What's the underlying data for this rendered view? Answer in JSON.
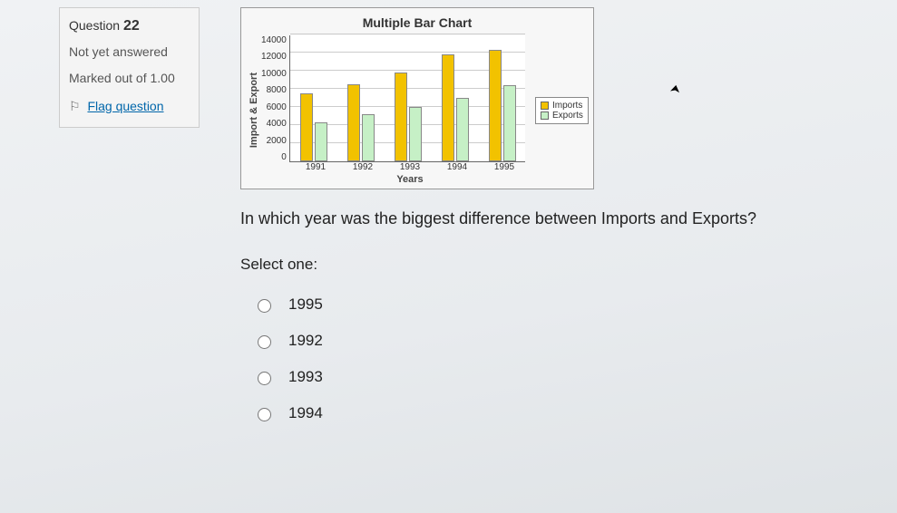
{
  "question_info": {
    "label": "Question",
    "number": "22",
    "status": "Not yet answered",
    "marked_label": "Marked out of",
    "marked_value": "1.00",
    "flag_text": "Flag question"
  },
  "chart": {
    "title": "Multiple Bar Chart",
    "ylabel": "Import & Export",
    "xlabel": "Years",
    "ymax": 14000,
    "ytick_step": 2000,
    "yticks": [
      "14000",
      "12000",
      "10000",
      "8000",
      "6000",
      "4000",
      "2000",
      "0"
    ],
    "categories": [
      "1991",
      "1992",
      "1993",
      "1994",
      "1995"
    ],
    "series": [
      {
        "name": "Imports",
        "color": "#f2c200",
        "values": [
          7500,
          8500,
          9800,
          11800,
          12300
        ]
      },
      {
        "name": "Exports",
        "color": "#c6f0c6",
        "values": [
          4300,
          5200,
          6000,
          7000,
          8400
        ]
      }
    ],
    "background_color": "#ffffff",
    "grid_color": "#cccccc",
    "axis_color": "#666666",
    "bar_border": "#888888"
  },
  "question_text": "In which year was the biggest difference between Imports and Exports?",
  "select_prompt": "Select one:",
  "options": [
    "1995",
    "1992",
    "1993",
    "1994"
  ]
}
